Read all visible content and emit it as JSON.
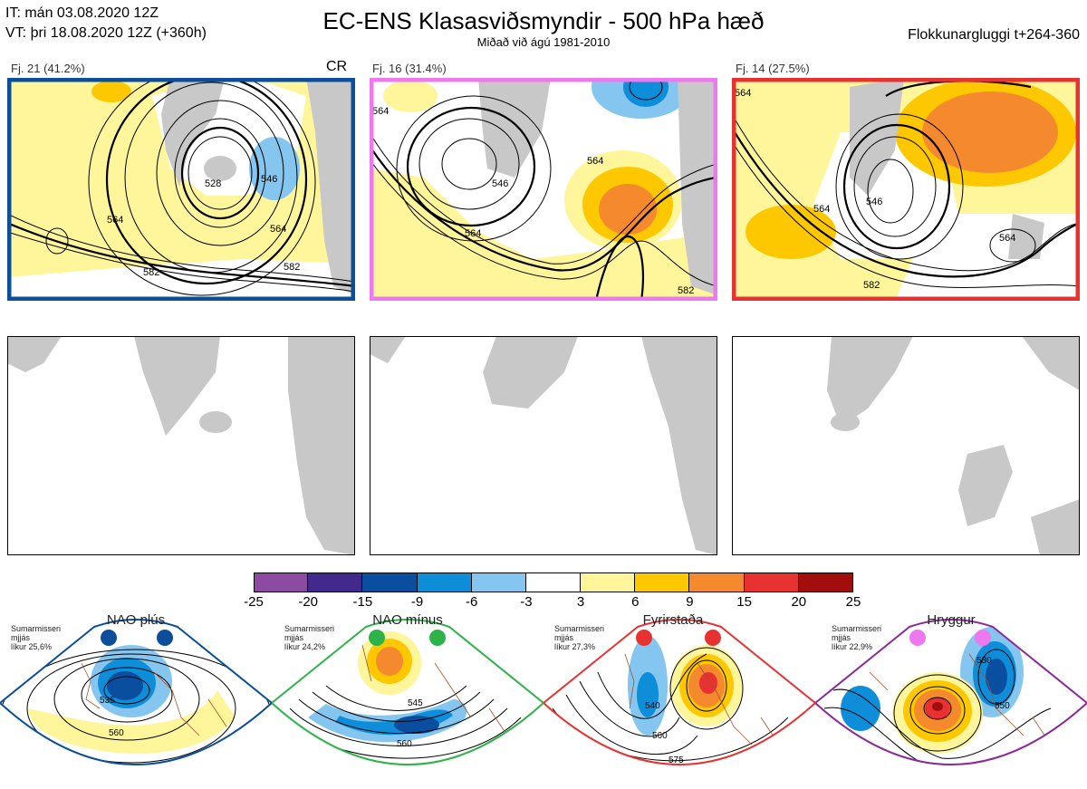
{
  "header": {
    "it_line": "IT: mán 03.08.2020 12Z",
    "vt_line": "VT: þri 18.08.2020 12Z  (+360h)",
    "title": "EC-ENS Klasasviðsmyndir - 500 hPa hæð",
    "subtitle": "Miðað við ágú 1981-2010",
    "window": "Flokkunargluggi t+264-360"
  },
  "clusters": [
    {
      "label": "Fj. 21 (41.2%)",
      "tag": "CR",
      "border_color": "#0b4f9c",
      "contour_labels": [
        "564",
        "528",
        "546",
        "564",
        "582",
        "582"
      ]
    },
    {
      "label": "Fj. 16 (31.4%)",
      "tag": "",
      "border_color": "#ee78ee",
      "contour_labels": [
        "564",
        "546",
        "564",
        "564",
        "582"
      ]
    },
    {
      "label": "Fj. 14 (27.5%)",
      "tag": "",
      "border_color": "#e83232",
      "contour_labels": [
        "564",
        "546",
        "564",
        "564",
        "582"
      ]
    }
  ],
  "colorbar": {
    "ticks": [
      "-25",
      "-20",
      "-15",
      "-9",
      "-6",
      "-3",
      "3",
      "6",
      "9",
      "15",
      "20",
      "25"
    ],
    "colors": [
      "#8c4aa0",
      "#422a8c",
      "#0a4f9f",
      "#0e8ed8",
      "#84c6ef",
      "#ffffff",
      "#fff59a",
      "#fdc800",
      "#f5892e",
      "#e83232",
      "#a20d0d"
    ]
  },
  "regimes": [
    {
      "title": "NAO plús",
      "desc": "Sumarmisseri\nmjjás\nlíkur 25,6%",
      "dot_color": "#0b4f9c",
      "frame_color": "#0b4f9c",
      "contours": [
        "535",
        "560"
      ]
    },
    {
      "title": "NAO mínus",
      "desc": "Sumarmisseri\nmjjás\nlíkur 24,2%",
      "dot_color": "#2db34a",
      "frame_color": "#2db34a",
      "contours": [
        "545",
        "560",
        "575"
      ]
    },
    {
      "title": "Fyrirstaða",
      "desc": "Sumarmisseri\nmjjás\nlíkur 27,3%",
      "dot_color": "#e83232",
      "frame_color": "#e83232",
      "contours": [
        "540",
        "560",
        "575"
      ]
    },
    {
      "title": "Hryggur",
      "desc": "Sumarmisseri\nmjjás\nlíkur 22,9%",
      "dot_color": "#ee78ee",
      "frame_color": "#8a2a9a",
      "contours": [
        "530",
        "550",
        "575"
      ]
    }
  ]
}
